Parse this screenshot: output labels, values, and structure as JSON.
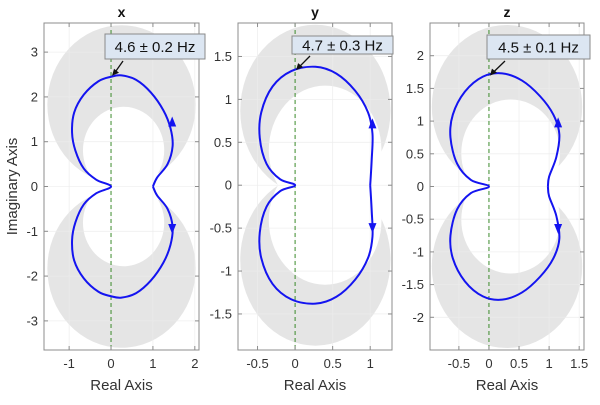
{
  "chart_data": [
    {
      "type": "line",
      "title": "x",
      "xlabel": "Real Axis",
      "ylabel": "Imaginary Axis",
      "xlim": [
        -1.6,
        2.1
      ],
      "ylim": [
        -3.65,
        3.65
      ],
      "xticks": [
        -1,
        0,
        1,
        2
      ],
      "yticks": [
        -3,
        -2,
        -1,
        0,
        1,
        2,
        3
      ],
      "grid": true,
      "annotation": "4.6 ± 0.2 Hz",
      "curve_upper_half": [
        [
          0,
          0
        ],
        [
          -0.35,
          0.15
        ],
        [
          -0.65,
          0.4
        ],
        [
          -0.85,
          0.8
        ],
        [
          -0.93,
          1.2
        ],
        [
          -0.88,
          1.65
        ],
        [
          -0.65,
          2.05
        ],
        [
          -0.3,
          2.35
        ],
        [
          0,
          2.45
        ],
        [
          0.25,
          2.48
        ],
        [
          0.6,
          2.38
        ],
        [
          0.95,
          2.1
        ],
        [
          1.25,
          1.7
        ],
        [
          1.42,
          1.3
        ],
        [
          1.47,
          0.9
        ],
        [
          1.35,
          0.5
        ],
        [
          1.1,
          0.2
        ],
        [
          1.0,
          0
        ]
      ],
      "arrows": [
        [
          1.46,
          1.45,
          "up"
        ],
        [
          1.46,
          -0.95,
          "down"
        ]
      ],
      "band_outer": {
        "cx": 0.25,
        "cy": 1.83,
        "rx": 1.77,
        "ry": 1.77
      },
      "band_inner": {
        "cx": 0.3,
        "cy": 0.81,
        "rx": 0.97,
        "ry": 0.97
      }
    },
    {
      "type": "line",
      "title": "y",
      "xlabel": "Real Axis",
      "ylabel": "",
      "xlim": [
        -0.76,
        1.29
      ],
      "ylim": [
        -1.92,
        1.89
      ],
      "xticks": [
        -0.5,
        0,
        0.5,
        1
      ],
      "yticks": [
        -1.5,
        -1,
        -0.5,
        0,
        0.5,
        1,
        1.5
      ],
      "grid": true,
      "annotation": "4.7 ± 0.3 Hz",
      "curve_upper_half": [
        [
          0,
          0
        ],
        [
          -0.2,
          0.07
        ],
        [
          -0.38,
          0.25
        ],
        [
          -0.47,
          0.55
        ],
        [
          -0.45,
          0.85
        ],
        [
          -0.3,
          1.15
        ],
        [
          -0.05,
          1.33
        ],
        [
          0.27,
          1.38
        ],
        [
          0.55,
          1.3
        ],
        [
          0.8,
          1.1
        ],
        [
          0.97,
          0.85
        ],
        [
          1.03,
          0.6
        ],
        [
          1.02,
          0.3
        ],
        [
          1.0,
          0
        ]
      ],
      "arrows": [
        [
          1.03,
          0.72,
          "up"
        ],
        [
          1.03,
          -0.5,
          "down"
        ]
      ],
      "band_outer": {
        "cx": 0.27,
        "cy": 0.87,
        "rx": 1.0,
        "ry": 1.0
      },
      "band_inner": {
        "cx": 0.4,
        "cy": 0.41,
        "rx": 0.75,
        "ry": 0.75
      }
    },
    {
      "type": "line",
      "title": "z",
      "xlabel": "Real Axis",
      "ylabel": "",
      "xlim": [
        -0.98,
        1.58
      ],
      "ylim": [
        -2.5,
        2.5
      ],
      "xticks": [
        -0.5,
        0,
        0.5,
        1,
        1.5
      ],
      "yticks": [
        -2,
        -1.5,
        -1,
        -0.5,
        0,
        0.5,
        1,
        1.5,
        2
      ],
      "grid": true,
      "annotation": "4.5 ± 0.1 Hz",
      "curve_upper_half": [
        [
          0,
          0
        ],
        [
          -0.3,
          0.1
        ],
        [
          -0.53,
          0.35
        ],
        [
          -0.64,
          0.75
        ],
        [
          -0.6,
          1.1
        ],
        [
          -0.4,
          1.45
        ],
        [
          -0.1,
          1.68
        ],
        [
          0.22,
          1.73
        ],
        [
          0.55,
          1.62
        ],
        [
          0.85,
          1.38
        ],
        [
          1.07,
          1.1
        ],
        [
          1.17,
          0.8
        ],
        [
          1.12,
          0.45
        ],
        [
          1.0,
          0.15
        ],
        [
          0.98,
          0
        ]
      ],
      "arrows": [
        [
          1.15,
          0.98,
          "up"
        ],
        [
          1.15,
          -0.65,
          "down"
        ]
      ],
      "band_outer": {
        "cx": 0.3,
        "cy": 1.22,
        "rx": 1.25,
        "ry": 1.25
      },
      "band_inner": {
        "cx": 0.36,
        "cy": 0.51,
        "rx": 0.82,
        "ry": 0.82
      }
    }
  ],
  "colors": {
    "curve": "#1414f0",
    "band": "#e5e5e5",
    "reference_line": "#3a8a2a",
    "annotation_bg": "#dce6f2",
    "annotation_border": "#8a8a8a",
    "grid": "#ececec",
    "axes": "#8c8c8c"
  }
}
